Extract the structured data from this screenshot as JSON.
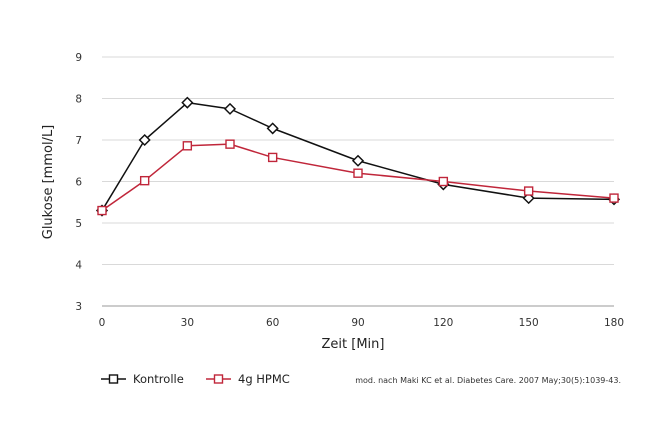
{
  "chart_data": {
    "type": "line",
    "xlabel": "Zeit [Min]",
    "ylabel": "Glukose [mmol/L]",
    "x_ticks": [
      0,
      30,
      60,
      90,
      120,
      150,
      180
    ],
    "y_ticks": [
      3,
      4,
      5,
      6,
      7,
      8,
      9
    ],
    "xlim": [
      0,
      180
    ],
    "ylim": [
      3,
      9
    ],
    "grid": "horizontal",
    "legend_position": "bottom-left",
    "series": [
      {
        "name": "Kontrolle",
        "color": "#111111",
        "marker": "diamond",
        "x": [
          0,
          15,
          30,
          45,
          60,
          90,
          120,
          150,
          180
        ],
        "y": [
          5.3,
          7.0,
          7.9,
          7.75,
          7.28,
          6.5,
          5.93,
          5.6,
          5.57
        ]
      },
      {
        "name": "4g HPMC",
        "color": "#c0263a",
        "marker": "square",
        "x": [
          0,
          15,
          30,
          45,
          60,
          90,
          120,
          150,
          180
        ],
        "y": [
          5.3,
          6.02,
          6.86,
          6.9,
          6.58,
          6.2,
          6.0,
          5.77,
          5.6
        ]
      }
    ],
    "source_note": "mod. nach Maki KC et al. Diabetes Care. 2007 May;30(5):1039-43."
  }
}
